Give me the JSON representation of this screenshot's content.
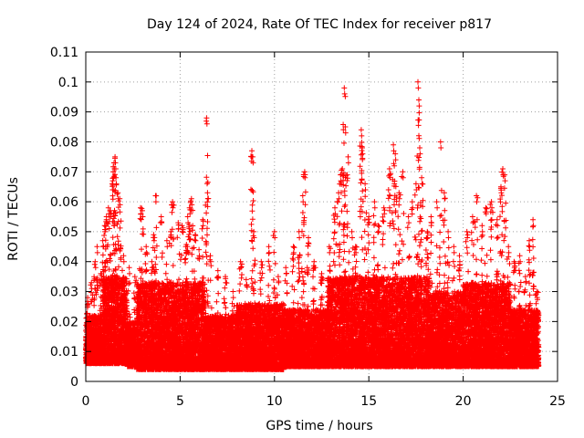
{
  "chart_data": {
    "type": "scatter",
    "title": "Day 124 of 2024, Rate Of TEC Index for receiver p817",
    "xlabel": "GPS time / hours",
    "ylabel": "ROTI / TECUs",
    "xlim": [
      0,
      25
    ],
    "ylim": [
      0,
      0.11
    ],
    "x_ticks": [
      0,
      5,
      10,
      15,
      20,
      25
    ],
    "x_tick_labels": [
      "0",
      "5",
      "10",
      "15",
      "20",
      "25"
    ],
    "y_ticks": [
      0,
      0.01,
      0.02,
      0.03,
      0.04,
      0.05,
      0.06,
      0.07,
      0.08,
      0.09,
      0.1,
      0.11
    ],
    "y_tick_labels": [
      "0",
      "0.01",
      "0.02",
      "0.03",
      "0.04",
      "0.05",
      "0.06",
      "0.07",
      "0.08",
      "0.09",
      "0.1",
      "0.11"
    ],
    "grid": true,
    "marker": "+",
    "series_color": "#ff0000",
    "data_density_note": "dense cloud of points between 0.005 and 0.03 across 0-24 h with spikes",
    "spikes": [
      {
        "x": 0.1,
        "y": 0.028
      },
      {
        "x": 0.3,
        "y": 0.033
      },
      {
        "x": 0.5,
        "y": 0.04
      },
      {
        "x": 0.6,
        "y": 0.045
      },
      {
        "x": 0.8,
        "y": 0.036
      },
      {
        "x": 0.9,
        "y": 0.047
      },
      {
        "x": 1.0,
        "y": 0.052
      },
      {
        "x": 1.1,
        "y": 0.055
      },
      {
        "x": 1.2,
        "y": 0.058
      },
      {
        "x": 1.3,
        "y": 0.057
      },
      {
        "x": 1.4,
        "y": 0.066
      },
      {
        "x": 1.45,
        "y": 0.07
      },
      {
        "x": 1.5,
        "y": 0.073
      },
      {
        "x": 1.55,
        "y": 0.075
      },
      {
        "x": 1.6,
        "y": 0.068
      },
      {
        "x": 1.7,
        "y": 0.063
      },
      {
        "x": 1.8,
        "y": 0.061
      },
      {
        "x": 2.0,
        "y": 0.042
      },
      {
        "x": 2.3,
        "y": 0.038
      },
      {
        "x": 2.6,
        "y": 0.035
      },
      {
        "x": 2.9,
        "y": 0.058
      },
      {
        "x": 3.0,
        "y": 0.057
      },
      {
        "x": 3.2,
        "y": 0.045
      },
      {
        "x": 3.5,
        "y": 0.04
      },
      {
        "x": 3.6,
        "y": 0.049
      },
      {
        "x": 3.7,
        "y": 0.062
      },
      {
        "x": 4.0,
        "y": 0.055
      },
      {
        "x": 4.3,
        "y": 0.047
      },
      {
        "x": 4.5,
        "y": 0.05
      },
      {
        "x": 4.6,
        "y": 0.06
      },
      {
        "x": 4.9,
        "y": 0.053
      },
      {
        "x": 5.1,
        "y": 0.052
      },
      {
        "x": 5.3,
        "y": 0.045
      },
      {
        "x": 5.4,
        "y": 0.055
      },
      {
        "x": 5.5,
        "y": 0.058
      },
      {
        "x": 5.6,
        "y": 0.061
      },
      {
        "x": 5.8,
        "y": 0.049
      },
      {
        "x": 6.0,
        "y": 0.044
      },
      {
        "x": 6.2,
        "y": 0.054
      },
      {
        "x": 6.4,
        "y": 0.088
      },
      {
        "x": 6.45,
        "y": 0.063
      },
      {
        "x": 6.6,
        "y": 0.042
      },
      {
        "x": 7.0,
        "y": 0.037
      },
      {
        "x": 7.4,
        "y": 0.035
      },
      {
        "x": 7.8,
        "y": 0.03
      },
      {
        "x": 8.2,
        "y": 0.04
      },
      {
        "x": 8.5,
        "y": 0.034
      },
      {
        "x": 8.8,
        "y": 0.077
      },
      {
        "x": 8.85,
        "y": 0.075
      },
      {
        "x": 8.9,
        "y": 0.05
      },
      {
        "x": 9.3,
        "y": 0.04
      },
      {
        "x": 9.7,
        "y": 0.045
      },
      {
        "x": 10.0,
        "y": 0.05
      },
      {
        "x": 10.2,
        "y": 0.035
      },
      {
        "x": 10.6,
        "y": 0.038
      },
      {
        "x": 11.0,
        "y": 0.045
      },
      {
        "x": 11.3,
        "y": 0.05
      },
      {
        "x": 11.5,
        "y": 0.062
      },
      {
        "x": 11.6,
        "y": 0.07
      },
      {
        "x": 11.8,
        "y": 0.048
      },
      {
        "x": 12.1,
        "y": 0.04
      },
      {
        "x": 12.5,
        "y": 0.036
      },
      {
        "x": 12.9,
        "y": 0.045
      },
      {
        "x": 13.2,
        "y": 0.058
      },
      {
        "x": 13.4,
        "y": 0.063
      },
      {
        "x": 13.5,
        "y": 0.069
      },
      {
        "x": 13.6,
        "y": 0.071
      },
      {
        "x": 13.7,
        "y": 0.098
      },
      {
        "x": 13.75,
        "y": 0.085
      },
      {
        "x": 13.9,
        "y": 0.075
      },
      {
        "x": 14.1,
        "y": 0.05
      },
      {
        "x": 14.3,
        "y": 0.045
      },
      {
        "x": 14.6,
        "y": 0.084
      },
      {
        "x": 14.65,
        "y": 0.078
      },
      {
        "x": 14.8,
        "y": 0.066
      },
      {
        "x": 15.0,
        "y": 0.055
      },
      {
        "x": 15.3,
        "y": 0.06
      },
      {
        "x": 15.5,
        "y": 0.052
      },
      {
        "x": 15.8,
        "y": 0.058
      },
      {
        "x": 16.1,
        "y": 0.071
      },
      {
        "x": 16.3,
        "y": 0.079
      },
      {
        "x": 16.4,
        "y": 0.076
      },
      {
        "x": 16.6,
        "y": 0.063
      },
      {
        "x": 16.8,
        "y": 0.07
      },
      {
        "x": 17.1,
        "y": 0.055
      },
      {
        "x": 17.3,
        "y": 0.06
      },
      {
        "x": 17.5,
        "y": 0.066
      },
      {
        "x": 17.6,
        "y": 0.1
      },
      {
        "x": 17.65,
        "y": 0.094
      },
      {
        "x": 17.7,
        "y": 0.078
      },
      {
        "x": 17.8,
        "y": 0.068
      },
      {
        "x": 18.1,
        "y": 0.05
      },
      {
        "x": 18.3,
        "y": 0.055
      },
      {
        "x": 18.6,
        "y": 0.06
      },
      {
        "x": 18.8,
        "y": 0.08
      },
      {
        "x": 19.0,
        "y": 0.063
      },
      {
        "x": 19.2,
        "y": 0.05
      },
      {
        "x": 19.5,
        "y": 0.045
      },
      {
        "x": 19.8,
        "y": 0.042
      },
      {
        "x": 20.2,
        "y": 0.05
      },
      {
        "x": 20.5,
        "y": 0.055
      },
      {
        "x": 20.7,
        "y": 0.062
      },
      {
        "x": 21.0,
        "y": 0.052
      },
      {
        "x": 21.2,
        "y": 0.058
      },
      {
        "x": 21.5,
        "y": 0.06
      },
      {
        "x": 21.8,
        "y": 0.054
      },
      {
        "x": 22.0,
        "y": 0.065
      },
      {
        "x": 22.1,
        "y": 0.071
      },
      {
        "x": 22.2,
        "y": 0.069
      },
      {
        "x": 22.4,
        "y": 0.045
      },
      {
        "x": 22.7,
        "y": 0.04
      },
      {
        "x": 23.0,
        "y": 0.042
      },
      {
        "x": 23.3,
        "y": 0.035
      },
      {
        "x": 23.5,
        "y": 0.047
      },
      {
        "x": 23.7,
        "y": 0.054
      },
      {
        "x": 23.9,
        "y": 0.03
      }
    ],
    "baseline_ranges": [
      {
        "x_start": 0.0,
        "x_end": 0.9,
        "y_low": 0.006,
        "y_high": 0.022
      },
      {
        "x_start": 0.9,
        "x_end": 2.2,
        "y_low": 0.006,
        "y_high": 0.035
      },
      {
        "x_start": 2.2,
        "x_end": 2.7,
        "y_low": 0.005,
        "y_high": 0.02
      },
      {
        "x_start": 2.7,
        "x_end": 6.3,
        "y_low": 0.004,
        "y_high": 0.033
      },
      {
        "x_start": 6.3,
        "x_end": 8.0,
        "y_low": 0.004,
        "y_high": 0.022
      },
      {
        "x_start": 8.0,
        "x_end": 10.5,
        "y_low": 0.004,
        "y_high": 0.026
      },
      {
        "x_start": 10.5,
        "x_end": 12.8,
        "y_low": 0.005,
        "y_high": 0.024
      },
      {
        "x_start": 12.8,
        "x_end": 18.2,
        "y_low": 0.005,
        "y_high": 0.035
      },
      {
        "x_start": 18.2,
        "x_end": 20.0,
        "y_low": 0.005,
        "y_high": 0.03
      },
      {
        "x_start": 20.0,
        "x_end": 22.5,
        "y_low": 0.005,
        "y_high": 0.033
      },
      {
        "x_start": 22.5,
        "x_end": 24.0,
        "y_low": 0.005,
        "y_high": 0.024
      }
    ]
  }
}
